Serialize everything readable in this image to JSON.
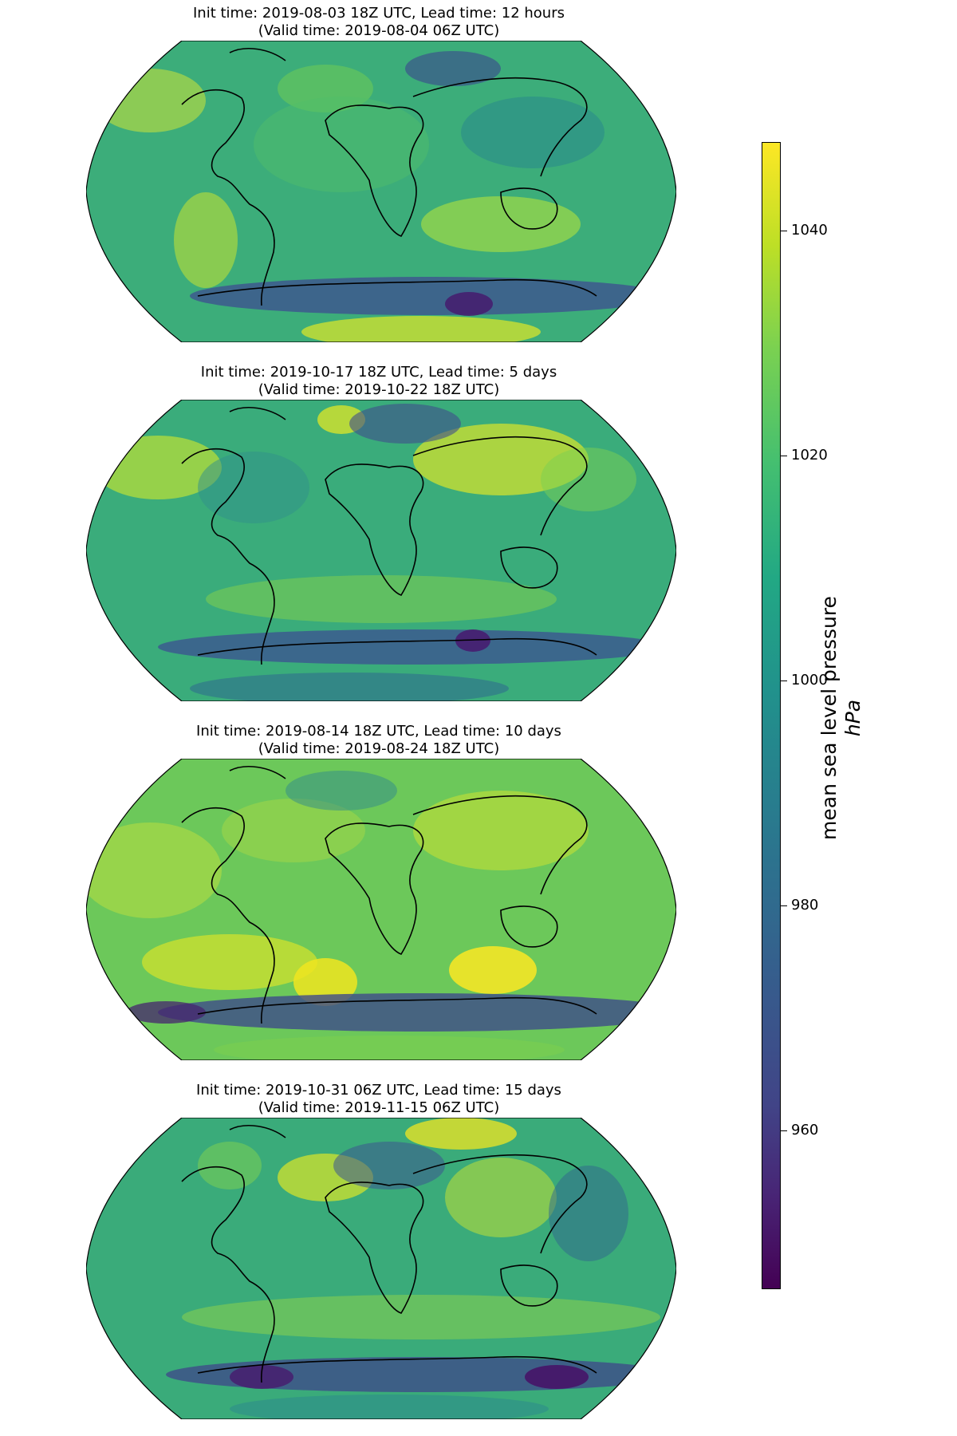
{
  "panels": [
    {
      "title_line1": "Init time: 2019-08-03 18Z UTC, Lead time: 12 hours",
      "title_line2": "(Valid time: 2019-08-04 06Z UTC)"
    },
    {
      "title_line1": "Init time: 2019-10-17 18Z UTC, Lead time: 5 days",
      "title_line2": "(Valid time: 2019-10-22 18Z UTC)"
    },
    {
      "title_line1": "Init time: 2019-08-14 18Z UTC, Lead time: 10 days",
      "title_line2": "(Valid time: 2019-08-24 18Z UTC)"
    },
    {
      "title_line1": "Init time: 2019-10-31 06Z UTC, Lead time: 15 days",
      "title_line2": "(Valid time: 2019-11-15 06Z UTC)"
    }
  ],
  "colorbar": {
    "label": "mean sea level pressure",
    "unit": "hPa",
    "min": 944,
    "max": 1048,
    "colormap": "viridis",
    "ticks": [
      "960",
      "980",
      "1000",
      "1020",
      "1040"
    ],
    "colors": {
      "low": "#440154",
      "mid": "#21918c",
      "high": "#fde725"
    }
  },
  "map": {
    "projection": "robinson",
    "coastline_color": "#000000"
  }
}
